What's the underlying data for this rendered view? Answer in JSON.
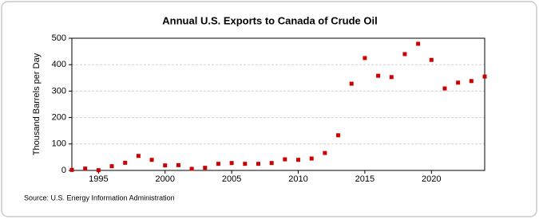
{
  "chart_data": {
    "type": "scatter",
    "title": "Annual U.S. Exports to Canada of Crude Oil",
    "y_label": "Thousand Barrels per Day",
    "source": "Source: U.S. Energy Information Administration",
    "x": [
      1993,
      1994,
      1995,
      1996,
      1997,
      1998,
      1999,
      2000,
      2001,
      2002,
      2003,
      2004,
      2005,
      2006,
      2007,
      2008,
      2009,
      2010,
      2011,
      2012,
      2013,
      2014,
      2015,
      2016,
      2017,
      2018,
      2019,
      2020,
      2021,
      2022,
      2023,
      2024
    ],
    "values": [
      2,
      7,
      1,
      16,
      29,
      55,
      40,
      19,
      20,
      6,
      10,
      25,
      28,
      25,
      25,
      28,
      42,
      40,
      45,
      66,
      133,
      328,
      425,
      358,
      353,
      440,
      479,
      418,
      310,
      332,
      338,
      355
    ],
    "color": "#cc0000",
    "xlim": [
      1993,
      2024
    ],
    "xticks": [
      1995,
      2000,
      2005,
      2010,
      2015,
      2020
    ],
    "ylim": [
      0,
      500
    ],
    "yticks": [
      0,
      100,
      200,
      300,
      400,
      500
    ],
    "grid": true
  }
}
